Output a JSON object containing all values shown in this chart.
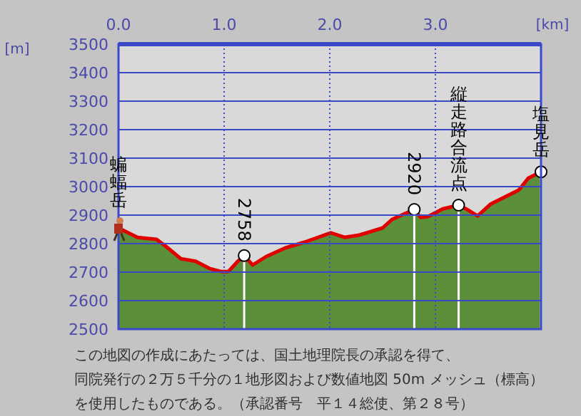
{
  "chart_data": {
    "type": "area",
    "xlabel": "[km]",
    "ylabel": "[m]",
    "xlim": [
      0,
      4.0
    ],
    "ylim": [
      2500,
      3500
    ],
    "xticks": [
      {
        "value": 0,
        "label": "0.0"
      },
      {
        "value": 1,
        "label": "1.0"
      },
      {
        "value": 2,
        "label": "2.0"
      },
      {
        "value": 3,
        "label": "3.0"
      }
    ],
    "yticks": [
      2500,
      2600,
      2700,
      2800,
      2900,
      3000,
      3100,
      3200,
      3300,
      3400,
      3500
    ],
    "grid": true,
    "x": [
      0,
      0.18,
      0.36,
      0.45,
      0.59,
      0.73,
      0.86,
      0.97,
      1.04,
      1.13,
      1.19,
      1.27,
      1.4,
      1.58,
      1.76,
      2.01,
      2.14,
      2.28,
      2.5,
      2.59,
      2.8,
      2.86,
      2.93,
      3.07,
      3.22,
      3.29,
      3.4,
      3.52,
      3.79,
      3.88,
      4.0
    ],
    "series": [
      {
        "color": "#5b8f3a",
        "values": [
          2855,
          2822,
          2815,
          2790,
          2747,
          2738,
          2713,
          2702,
          2702,
          2738,
          2758,
          2725,
          2755,
          2785,
          2805,
          2838,
          2822,
          2830,
          2855,
          2885,
          2920,
          2892,
          2895,
          2922,
          2935,
          2922,
          2897,
          2938,
          2988,
          3030,
          3052
        ]
      },
      {
        "type": "lollipop",
        "color": "#ffffff",
        "x": [
          1.19,
          2.8,
          3.22,
          4.0
        ],
        "values": [
          2758,
          2920,
          2935,
          3052
        ]
      },
      {
        "type": "line",
        "color": "#e00000",
        "values": [
          2855,
          2822,
          2815,
          2790,
          2747,
          2738,
          2713,
          2702,
          2702,
          2738,
          2758,
          2725,
          2755,
          2785,
          2805,
          2838,
          2822,
          2830,
          2855,
          2885,
          2920,
          2892,
          2895,
          2922,
          2935,
          2922,
          2897,
          2938,
          2988,
          3030,
          3052
        ]
      }
    ],
    "annotations": [
      {
        "text": "蝙蝠岳",
        "x": 0,
        "y": 2855
      },
      {
        "text": "2758",
        "x": 1.19,
        "y": 2758
      },
      {
        "text": "2920",
        "x": 2.8,
        "y": 2920
      },
      {
        "text": "縦走路合流点",
        "x": 3.22,
        "y": 2935
      },
      {
        "text": "塩見岳",
        "x": 4.0,
        "y": 3052
      },
      "この地図の作成にあたっては、国土地理院長の承認を得て、",
      "同院発行の２万５千分の１地形図および数値地図 50m メッシュ（標高）",
      "を使用したものである。（承認番号　平１４総使、第２８号）"
    ]
  }
}
